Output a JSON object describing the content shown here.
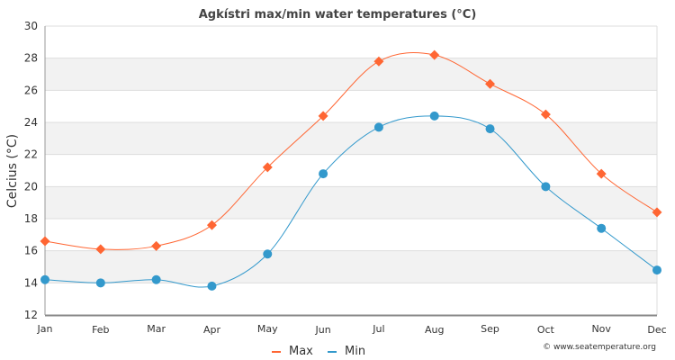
{
  "chart_data": {
    "type": "line",
    "title": "Agkístri max/min water temperatures (°C)",
    "xlabel": "",
    "ylabel": "Celcius (°C)",
    "ylim": [
      12,
      30
    ],
    "yticks": [
      "12",
      "14",
      "16",
      "18",
      "20",
      "22",
      "24",
      "26",
      "28",
      "30"
    ],
    "categories": [
      "Jan",
      "Feb",
      "Mar",
      "Apr",
      "May",
      "Jun",
      "Jul",
      "Aug",
      "Sep",
      "Oct",
      "Nov",
      "Dec"
    ],
    "series": [
      {
        "name": "Max",
        "color": "#ff6633",
        "marker": "diamond",
        "values": [
          16.6,
          16.1,
          16.3,
          17.6,
          21.2,
          24.4,
          27.8,
          28.2,
          26.4,
          24.5,
          20.8,
          18.4
        ]
      },
      {
        "name": "Min",
        "color": "#3399cc",
        "marker": "circle",
        "values": [
          14.2,
          14.0,
          14.2,
          13.8,
          15.8,
          20.8,
          23.7,
          24.4,
          23.6,
          20.0,
          17.4,
          14.8
        ]
      }
    ],
    "legend": "bottom-center",
    "grid": true
  },
  "credit": "© www.seatemperature.org"
}
